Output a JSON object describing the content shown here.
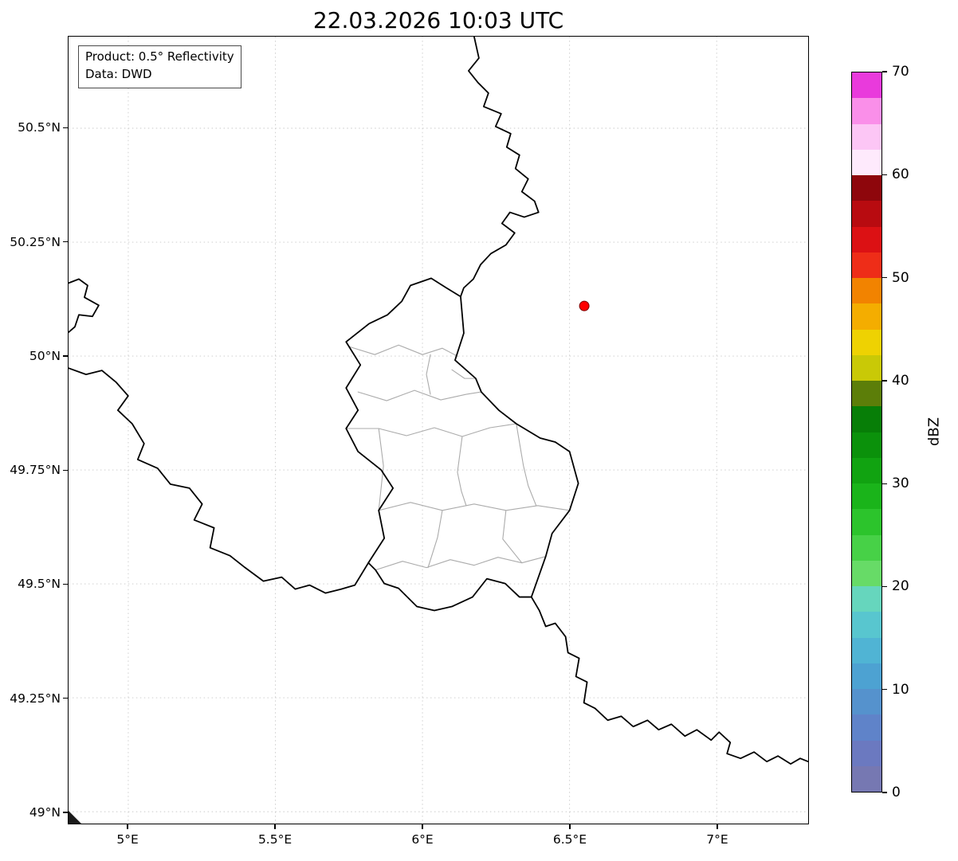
{
  "title": "22.03.2026 10:03 UTC",
  "info_box": {
    "product": "Product: 0.5° Reflectivity",
    "data_source": "Data: DWD"
  },
  "map": {
    "extent": {
      "lon_min": 4.797,
      "lon_max": 7.311,
      "lat_min": 48.974,
      "lat_max": 50.701
    },
    "x_ticks": [
      {
        "label": "5°E",
        "lon": 5.0
      },
      {
        "label": "5.5°E",
        "lon": 5.5
      },
      {
        "label": "6°E",
        "lon": 6.0
      },
      {
        "label": "6.5°E",
        "lon": 6.5
      },
      {
        "label": "7°E",
        "lon": 7.0
      }
    ],
    "y_ticks": [
      {
        "label": "50.5°N",
        "lat": 50.5
      },
      {
        "label": "50.25°N",
        "lat": 50.25
      },
      {
        "label": "50°N",
        "lat": 50.0
      },
      {
        "label": "49.75°N",
        "lat": 49.75
      },
      {
        "label": "49.5°N",
        "lat": 49.5
      },
      {
        "label": "49.25°N",
        "lat": 49.25
      },
      {
        "label": "49°N",
        "lat": 49.0
      }
    ],
    "radar_site": {
      "lon": 6.55,
      "lat": 50.11,
      "color": "#ff0000",
      "edge_color": "#7a0000"
    },
    "border_color": "#000000",
    "admin_border_color": "#ababab",
    "grid_color": "#c9c9c9"
  },
  "colorbar": {
    "label": "dBZ",
    "vmin": 0,
    "vmax": 70,
    "tick_values": [
      0,
      10,
      20,
      30,
      40,
      50,
      60,
      70
    ],
    "band_step_dbz": 2.5,
    "colors_bottom_to_top": [
      "#7678b2",
      "#6b79c0",
      "#5f83c9",
      "#5592cd",
      "#4da2d2",
      "#50b4d4",
      "#58c6cf",
      "#66d6bd",
      "#67db67",
      "#47d147",
      "#2cc42c",
      "#1ab41a",
      "#11a311",
      "#0b910b",
      "#077e07",
      "#5c7e09",
      "#c9c906",
      "#eed202",
      "#f4ad00",
      "#f28300",
      "#ee2d18",
      "#dc1114",
      "#b80b10",
      "#8e060c",
      "#feeafc",
      "#fcc6f5",
      "#fa8fe9",
      "#e93adc"
    ]
  }
}
